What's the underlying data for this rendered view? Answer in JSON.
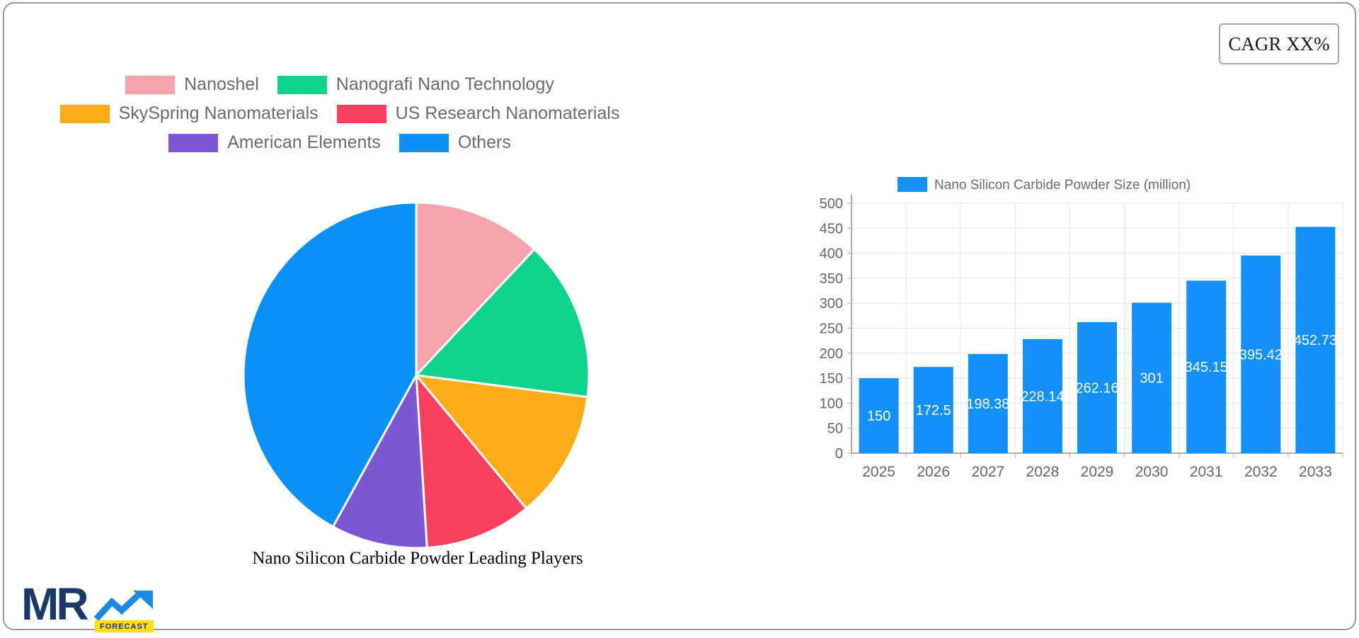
{
  "cagr": {
    "label": "CAGR XX%"
  },
  "logo": {
    "mr_text": "MR",
    "forecast_text": "FORECAST",
    "navy": "#1b3968",
    "arrow_blue": "#1e88e5",
    "badge_yellow": "#ffde17"
  },
  "styles": {
    "card_border": "#9a9a9a",
    "legend_text_color": "#6b6b6b",
    "axis_text_color": "#666666",
    "grid_color": "#e6e6e6",
    "axis_line_color": "#acacac"
  },
  "chart_data": [
    {
      "type": "pie",
      "title": "Nano Silicon Carbide Powder Leading Players",
      "labels": [
        "Nanoshel",
        "Nanografi Nano Technology",
        "SkySpring Nanomaterials",
        "US Research Nanomaterials",
        "American Elements",
        "Others"
      ],
      "values_percent": [
        12,
        15,
        12,
        10,
        9,
        42
      ],
      "colors": [
        "#f5a3ac",
        "#0fd28b",
        "#fbac18",
        "#fa3f5f",
        "#7d58d3",
        "#0b90f5"
      ],
      "legend_rows": [
        [
          0,
          1
        ],
        [
          2,
          3
        ],
        [
          4,
          5
        ]
      ],
      "legend_position": "top",
      "start_angle_deg": 0,
      "slice_gap_stroke": "#ffffff"
    },
    {
      "type": "bar",
      "legend_label": "Nano Silicon Carbide Powder Size (million)",
      "categories": [
        "2025",
        "2026",
        "2027",
        "2028",
        "2029",
        "2030",
        "2031",
        "2032",
        "2033"
      ],
      "values": [
        150,
        172.5,
        198.38,
        228.14,
        262.16,
        301,
        345.15,
        395.42,
        452.73
      ],
      "value_labels": [
        "150",
        "172.5",
        "198.38",
        "228.14",
        "262.16",
        "301",
        "345.15",
        "395.42",
        "452.73"
      ],
      "bar_color": "#1291fa",
      "value_label_color": "#ffffff",
      "ylim": [
        0,
        500
      ],
      "ytick_step": 50,
      "yticks": [
        "0",
        "50",
        "100",
        "150",
        "200",
        "250",
        "300",
        "350",
        "400",
        "450",
        "500"
      ],
      "grid": true,
      "legend_position": "top"
    }
  ]
}
